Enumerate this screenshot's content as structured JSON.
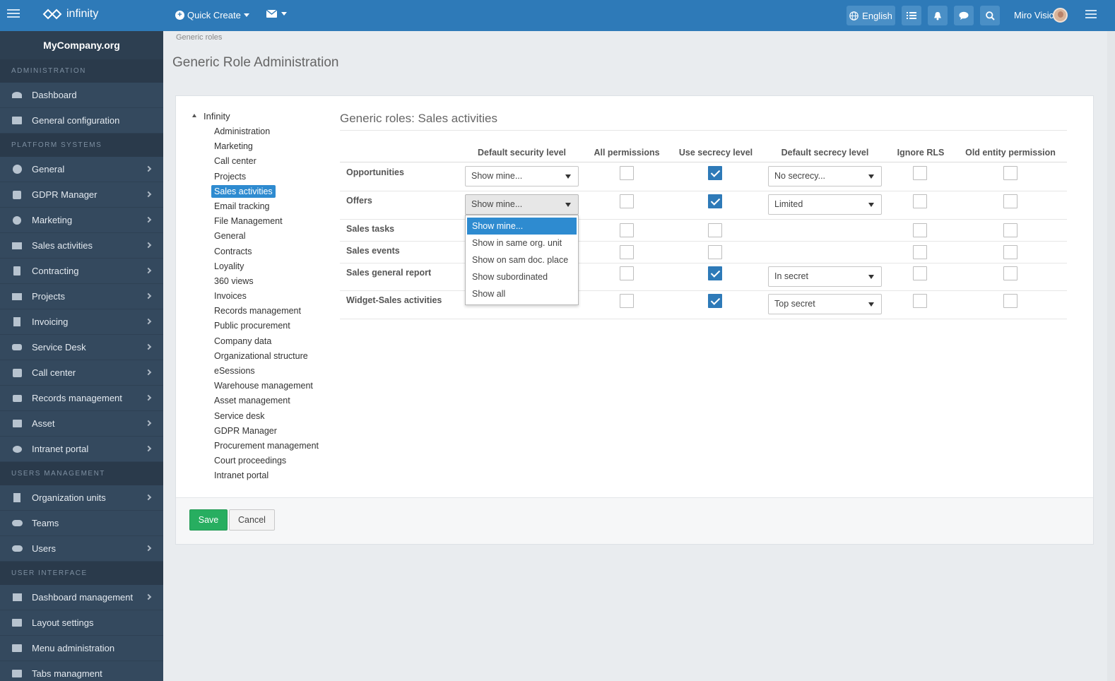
{
  "topbar": {
    "logo_text": "infinity",
    "quick_create": "Quick Create",
    "language": "English",
    "user_name": "Miro Visic"
  },
  "sidebar": {
    "company": "MyCompany.org",
    "sections": [
      {
        "title": "ADMINISTRATION",
        "items": [
          {
            "label": "Dashboard",
            "icon": "dashboard-icon",
            "chevron": false
          },
          {
            "label": "General configuration",
            "icon": "monitor-icon",
            "chevron": false
          }
        ]
      },
      {
        "title": "PLATFORM SYSTEMS",
        "items": [
          {
            "label": "General",
            "icon": "gears-icon",
            "chevron": true
          },
          {
            "label": "GDPR Manager",
            "icon": "check-square-icon",
            "chevron": true
          },
          {
            "label": "Marketing",
            "icon": "target-icon",
            "chevron": true
          },
          {
            "label": "Sales activities",
            "icon": "filter-money-icon",
            "chevron": true
          },
          {
            "label": "Contracting",
            "icon": "document-icon",
            "chevron": true
          },
          {
            "label": "Projects",
            "icon": "sitemap-icon",
            "chevron": true
          },
          {
            "label": "Invoicing",
            "icon": "invoice-icon",
            "chevron": true
          },
          {
            "label": "Service Desk",
            "icon": "wrench-icon",
            "chevron": true
          },
          {
            "label": "Call center",
            "icon": "phone-icon",
            "chevron": true
          },
          {
            "label": "Records management",
            "icon": "briefcase-icon",
            "chevron": true
          },
          {
            "label": "Asset",
            "icon": "layers-icon",
            "chevron": true
          },
          {
            "label": "Intranet portal",
            "icon": "chat-icon",
            "chevron": true
          }
        ]
      },
      {
        "title": "USERS MANAGEMENT",
        "items": [
          {
            "label": "Organization units",
            "icon": "building-icon",
            "chevron": true
          },
          {
            "label": "Teams",
            "icon": "group-icon",
            "chevron": false
          },
          {
            "label": "Users",
            "icon": "users-icon",
            "chevron": true
          }
        ]
      },
      {
        "title": "USER INTERFACE",
        "items": [
          {
            "label": "Dashboard management",
            "icon": "area-chart-icon",
            "chevron": true
          },
          {
            "label": "Layout settings",
            "icon": "monitor-icon",
            "chevron": false
          },
          {
            "label": "Menu administration",
            "icon": "monitor-icon",
            "chevron": false
          },
          {
            "label": "Tabs managment",
            "icon": "monitor-icon",
            "chevron": false
          }
        ]
      }
    ]
  },
  "breadcrumb": "Generic roles",
  "page_title": "Generic Role Administration",
  "tree": {
    "root": "Infinity",
    "items": [
      "Administration",
      "Marketing",
      "Call center",
      "Projects",
      "Sales activities",
      "Email tracking",
      "File Management",
      "General",
      "Contracts",
      "Loyality",
      "360 views",
      "Invoices",
      "Records management",
      "Public procurement",
      "Company data",
      "Organizational structure",
      "eSessions",
      "Warehouse management",
      "Asset management",
      "Service desk",
      "GDPR Manager",
      "Procurement management",
      "Court proceedings",
      "Intranet portal"
    ],
    "active": "Sales activities"
  },
  "section_title": "Generic roles: Sales activities",
  "table": {
    "columns": [
      "Default security level",
      "All permissions",
      "Use secrecy level",
      "Default secrecy level",
      "Ignore RLS",
      "Old entity permission"
    ],
    "rows": [
      {
        "label": "Opportunities",
        "security": "Show mine...",
        "all": false,
        "use_secrecy": true,
        "secrecy": "No secrecy...",
        "ignore_rls": false,
        "old_entity": false
      },
      {
        "label": "Offers",
        "security": "Show mine...",
        "all": false,
        "use_secrecy": true,
        "secrecy": "Limited",
        "ignore_rls": false,
        "old_entity": false
      },
      {
        "label": "Sales tasks",
        "security": "",
        "all": false,
        "use_secrecy": false,
        "secrecy": null,
        "ignore_rls": false,
        "old_entity": false
      },
      {
        "label": "Sales events",
        "security": "",
        "all": false,
        "use_secrecy": false,
        "secrecy": null,
        "ignore_rls": false,
        "old_entity": false
      },
      {
        "label": "Sales general report",
        "security": "",
        "all": false,
        "use_secrecy": true,
        "secrecy": "In secret",
        "ignore_rls": false,
        "old_entity": false
      },
      {
        "label": "Widget-Sales activities",
        "security": "",
        "all": false,
        "use_secrecy": true,
        "secrecy": "Top secret",
        "ignore_rls": false,
        "old_entity": false
      }
    ]
  },
  "dropdown": {
    "options": [
      "Show mine...",
      "Show in same org. unit",
      "Show on sam doc. place",
      "Show subordinated",
      "Show all"
    ],
    "selected": "Show mine..."
  },
  "buttons": {
    "save": "Save",
    "cancel": "Cancel"
  },
  "colors": {
    "topbar": "#2e7ab8",
    "sidebar": "#34495e",
    "accent": "#2e8bd0",
    "save": "#27ae60"
  }
}
